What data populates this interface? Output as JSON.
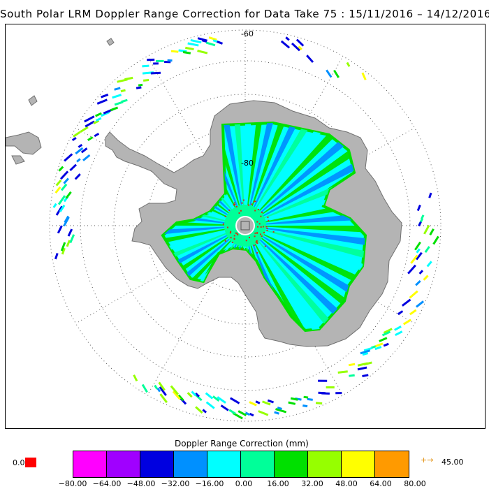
{
  "title": "South Polar LRM Doppler Range Correction for Data Take 75 : 15/11/2016 – 14/12/2016",
  "map": {
    "projection": "south polar stereographic",
    "lat_labels": [
      "-60",
      "-80"
    ],
    "land_color": "#b4b4b4",
    "land_outline_color": "#707070",
    "ocean_color": "#ffffff",
    "grid_color": "#555555",
    "missing_point_color": "#d03010"
  },
  "legend": {
    "title": "Doppler Range Correction (mm)",
    "colors": [
      "#ff00ff",
      "#a000ff",
      "#0000e0",
      "#0090ff",
      "#00ffff",
      "#00ff99",
      "#00e000",
      "#96ff00",
      "#ffff00",
      "#ff9a00"
    ],
    "ticks": [
      "−80.00",
      "−64.00",
      "−48.00",
      "−32.00",
      "−16.00",
      "0.00",
      "16.00",
      "32.00",
      "48.00",
      "64.00",
      "80.00"
    ],
    "missing_value_label": "0.0",
    "missing_value_color": "#ff0000",
    "overflow_arrow": "+→",
    "overflow_label": "45.00"
  }
}
